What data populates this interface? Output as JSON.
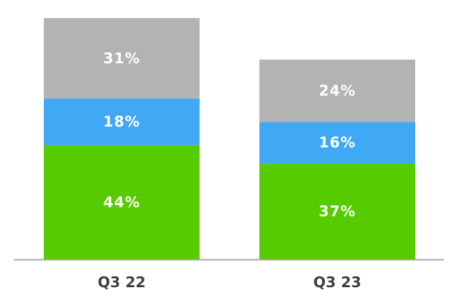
{
  "chart_data": {
    "type": "bar",
    "stacked": true,
    "categories": [
      "Q3 22",
      "Q3 23"
    ],
    "series": [
      {
        "values": [
          44,
          37
        ],
        "data_labels": [
          "44%",
          "37%"
        ],
        "color": "#56cc00"
      },
      {
        "values": [
          18,
          16
        ],
        "data_labels": [
          "18%",
          "16%"
        ],
        "color": "#3fa9f5"
      },
      {
        "values": [
          31,
          24
        ],
        "data_labels": [
          "31%",
          "24%"
        ],
        "color": "#b3b3b3"
      }
    ],
    "title": "",
    "xlabel": "",
    "ylabel": "",
    "ylim": [
      0,
      93
    ],
    "grid": false,
    "axis_color": "#a6a6a6"
  }
}
